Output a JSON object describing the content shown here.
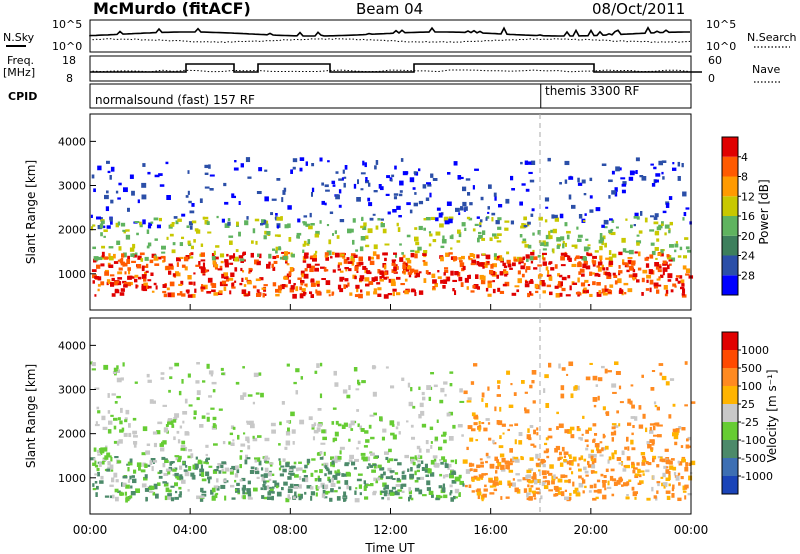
{
  "header": {
    "station": "McMurdo (fitACF)",
    "beam": "Beam 04",
    "date": "08/Oct/2011"
  },
  "noise_panel": {
    "left_label": "N.Sky",
    "right_label": "N.Search",
    "left_ticks": [
      "10^5",
      "10^0"
    ],
    "right_ticks": [
      "10^5",
      "10^0"
    ]
  },
  "freq_panel": {
    "left_label": "Freq.",
    "left_unit": "[MHz]",
    "right_label": "Nave",
    "left_ticks": [
      "18",
      "8"
    ],
    "right_ticks": [
      "60",
      "0"
    ]
  },
  "cpid_panel": {
    "label": "CPID",
    "segments": [
      "normalsound (fast) 157 RF",
      "themis 3300 RF"
    ],
    "switch_time_hours": 18.0
  },
  "chart_data": [
    {
      "type": "heatmap",
      "name": "power",
      "ylabel": "Slant Range [km]",
      "yticks": [
        "1000",
        "2000",
        "3000",
        "4000"
      ],
      "ylim": [
        180,
        4620
      ],
      "xlim_hours": [
        0,
        24
      ],
      "colorbar": {
        "label": "Power [dB]",
        "ticks": [
          "4",
          "8",
          "12",
          "16",
          "20",
          "24",
          "28"
        ],
        "colors": [
          "#0000ff",
          "#2b4fa8",
          "#3d7f5c",
          "#5fb35f",
          "#c8c800",
          "#ff9a00",
          "#ff5a00",
          "#e00000"
        ]
      }
    },
    {
      "type": "heatmap",
      "name": "velocity",
      "ylabel": "Slant Range [km]",
      "yticks": [
        "1000",
        "2000",
        "3000",
        "4000"
      ],
      "ylim": [
        180,
        4620
      ],
      "xlim_hours": [
        0,
        24
      ],
      "colorbar": {
        "label": "Velocity [m s⁻¹]",
        "ticks": [
          "1000",
          "500",
          "100",
          "25",
          "-25",
          "-100",
          "-500",
          "-1000"
        ],
        "colors": [
          "#1a44b8",
          "#3d6fb3",
          "#4c8a6a",
          "#66cc33",
          "#c8c8c8",
          "#ffb400",
          "#ff8a20",
          "#ff4a00",
          "#e00000"
        ]
      }
    }
  ],
  "xaxis": {
    "ticks": [
      "00:00",
      "04:00",
      "08:00",
      "12:00",
      "16:00",
      "20:00",
      "00:00"
    ],
    "label": "Time UT"
  },
  "colors": {
    "power_low": "#0000ff",
    "power_high": "#e00000",
    "ground_scatter": "#c8c8c8"
  }
}
